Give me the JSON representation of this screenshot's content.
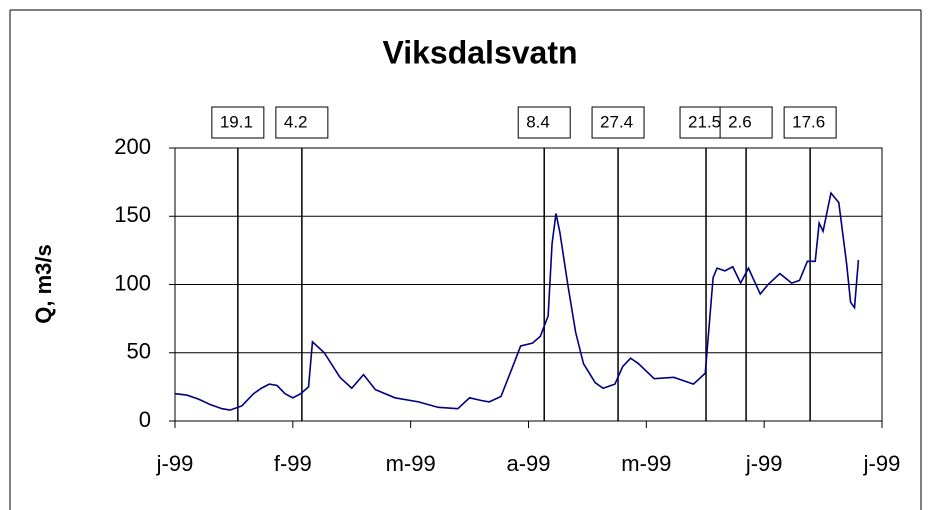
{
  "chart_data": {
    "type": "line",
    "title": "Viksdalsvatn",
    "y_label": "Q, m3/s",
    "x": [
      0,
      3,
      6,
      9,
      12,
      14,
      17,
      20,
      22,
      24,
      26,
      28,
      30,
      32,
      34,
      35,
      38,
      42,
      45,
      48,
      51,
      56,
      62,
      67,
      72,
      75,
      78,
      80,
      83,
      86,
      88,
      91,
      93,
      95,
      96,
      97,
      98,
      100,
      102,
      104,
      107,
      109,
      112,
      114,
      116,
      118,
      122,
      127,
      132,
      135,
      137,
      138,
      140,
      142,
      144,
      146,
      149,
      151,
      154,
      157,
      159,
      161,
      163,
      164,
      165,
      167,
      169,
      171,
      172,
      173,
      174
    ],
    "series": [
      {
        "name": "Q",
        "color": "#000080",
        "values": [
          20,
          19,
          16,
          12,
          9,
          8,
          11,
          20,
          24,
          27,
          26,
          20,
          17,
          20,
          25,
          58,
          50,
          32,
          24,
          34,
          23,
          17,
          14,
          10,
          9,
          17,
          15,
          14,
          18,
          40,
          55,
          57,
          62,
          77,
          130,
          152,
          138,
          100,
          65,
          42,
          28,
          24,
          27,
          40,
          46,
          42,
          31,
          32,
          27,
          35,
          105,
          112,
          110,
          113,
          101,
          112,
          93,
          100,
          108,
          101,
          103,
          117,
          117,
          145,
          139,
          167,
          160,
          115,
          87,
          83,
          118
        ]
      }
    ],
    "xlim": [
      0,
      180
    ],
    "xticks": [
      {
        "value": 0,
        "label": "j-99"
      },
      {
        "value": 30,
        "label": "f-99"
      },
      {
        "value": 60,
        "label": "m-99"
      },
      {
        "value": 90,
        "label": "a-99"
      },
      {
        "value": 120,
        "label": "m-99"
      },
      {
        "value": 150,
        "label": "j-99"
      },
      {
        "value": 180,
        "label": "j-99"
      }
    ],
    "ylim": [
      0,
      200
    ],
    "yticks": [
      0,
      50,
      100,
      150,
      200
    ],
    "grid": true,
    "annotations": [
      {
        "x": 16,
        "label": "19.1"
      },
      {
        "x": 32.3,
        "label": "4.2"
      },
      {
        "x": 94,
        "label": "8.4"
      },
      {
        "x": 112.8,
        "label": "27.4"
      },
      {
        "x": 135.2,
        "label": "21.5"
      },
      {
        "x": 145.4,
        "label": "2.6"
      },
      {
        "x": 161.7,
        "label": "17.6"
      }
    ]
  }
}
